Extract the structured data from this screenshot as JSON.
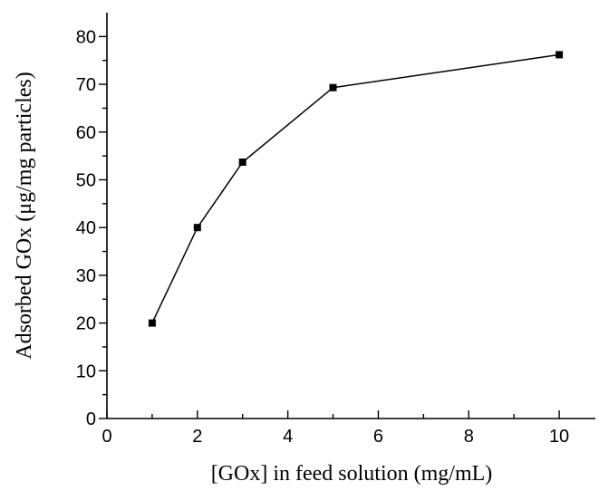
{
  "chart_data": {
    "type": "line",
    "title": "",
    "xlabel": "[GOx] in feed solution (mg/mL)",
    "ylabel": "Adsorbed GOx (μg/mg particles)",
    "xlim": [
      0,
      10.8
    ],
    "ylim": [
      0,
      85
    ],
    "x_major_ticks": [
      0,
      2,
      4,
      6,
      8,
      10
    ],
    "y_major_ticks": [
      0,
      10,
      20,
      30,
      40,
      50,
      60,
      70,
      80
    ],
    "x_tick_labels": [
      "0",
      "2",
      "4",
      "6",
      "8",
      "10"
    ],
    "y_tick_labels": [
      "0",
      "10",
      "20",
      "30",
      "40",
      "50",
      "60",
      "70",
      "80"
    ],
    "grid": false,
    "series": [
      {
        "x": [
          1,
          2,
          3,
          5,
          10
        ],
        "y": [
          20,
          40,
          53.7,
          69.3,
          76.2
        ],
        "marker": "square",
        "color": "#000000"
      }
    ]
  }
}
